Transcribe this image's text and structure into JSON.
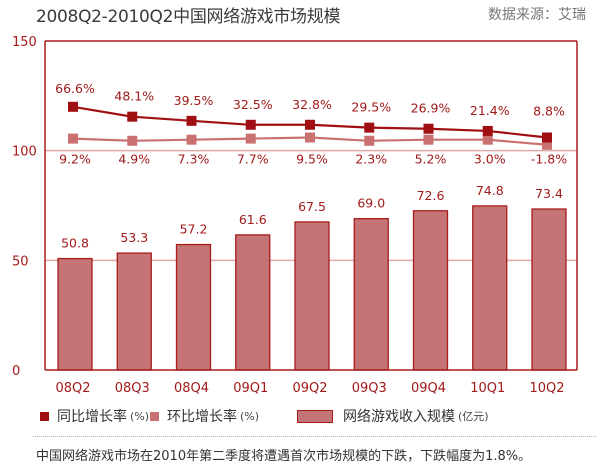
{
  "header": {
    "title": "2008Q2-2010Q2中国网络游戏市场规模",
    "source": "数据来源：艾瑞"
  },
  "chart_data": {
    "type": "bar",
    "title": "2008Q2-2010Q2中国网络游戏市场规模",
    "xlabel": "",
    "ylabel": "",
    "ylim": [
      0,
      150
    ],
    "yticks": [
      0,
      50,
      100,
      150
    ],
    "grid": true,
    "legend_position": "bottom",
    "categories": [
      "08Q2",
      "08Q3",
      "08Q4",
      "09Q1",
      "09Q2",
      "09Q3",
      "09Q4",
      "10Q1",
      "10Q2"
    ],
    "series": [
      {
        "name": "网络游戏收入规模",
        "unit": "(亿元)",
        "type": "bar",
        "values": [
          50.8,
          53.3,
          57.2,
          61.6,
          67.5,
          69.0,
          72.6,
          74.8,
          73.4
        ],
        "labels": [
          "50.8",
          "53.3",
          "57.2",
          "61.6",
          "67.5",
          "69.0",
          "72.6",
          "74.8",
          "73.4"
        ]
      },
      {
        "name": "同比增长率",
        "unit": "(%)",
        "type": "line",
        "values": [
          66.6,
          48.1,
          39.5,
          32.5,
          32.8,
          29.5,
          26.9,
          21.4,
          8.8
        ],
        "labels": [
          "66.6%",
          "48.1%",
          "39.5%",
          "32.5%",
          "32.8%",
          "29.5%",
          "26.9%",
          "21.4%",
          "8.8%"
        ],
        "plot_y": [
          120,
          115.5,
          113.6,
          111.8,
          111.8,
          110.5,
          110,
          109,
          106
        ]
      },
      {
        "name": "环比增长率",
        "unit": "(%)",
        "type": "line",
        "values": [
          9.2,
          4.9,
          7.3,
          7.7,
          9.5,
          2.3,
          5.2,
          3.0,
          -1.8
        ],
        "labels": [
          "9.2%",
          "4.9%",
          "7.3%",
          "7.7%",
          "9.5%",
          "2.3%",
          "5.2%",
          "3.0%",
          "-1.8%"
        ],
        "plot_y": [
          105.5,
          104.5,
          105,
          105.5,
          106,
          104.5,
          105,
          105,
          102.7
        ]
      }
    ]
  },
  "legend": {
    "items": [
      {
        "label": "同比增长率",
        "unit": "(%)"
      },
      {
        "label": "环比增长率",
        "unit": "(%)"
      },
      {
        "label": "网络游戏收入规模",
        "unit": "(亿元)"
      }
    ]
  },
  "caption": "中国网络游戏市场在2010年第二季度将遭遇首次市场规模的下跌，下跌幅度为1.8%。",
  "colors": {
    "axis": "#a81c1c",
    "bar_fill": "#c47474",
    "bar_stroke": "#a81c1c",
    "yoy_line": "#a00f12",
    "qoq_line": "#c97070",
    "grid": "#e2a9a9",
    "label_text": "#a11a1a"
  }
}
